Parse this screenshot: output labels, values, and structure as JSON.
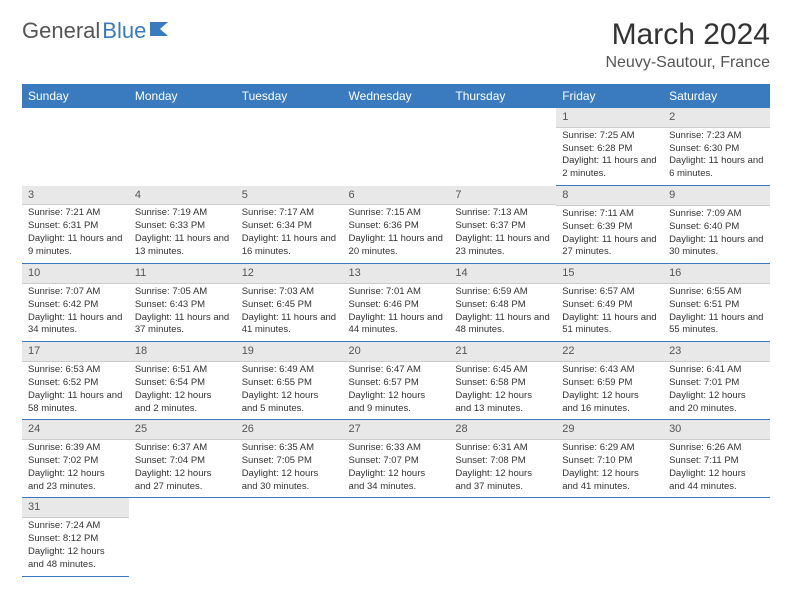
{
  "logo": {
    "general": "General",
    "blue": "Blue"
  },
  "title": "March 2024",
  "location": "Neuvy-Sautour, France",
  "day_headers": [
    "Sunday",
    "Monday",
    "Tuesday",
    "Wednesday",
    "Thursday",
    "Friday",
    "Saturday"
  ],
  "colors": {
    "header_bg": "#3a7bbf",
    "daynum_bg": "#e8e8e8",
    "row_border": "#3a7bbf"
  },
  "weeks": [
    [
      {
        "blank": true
      },
      {
        "blank": true
      },
      {
        "blank": true
      },
      {
        "blank": true
      },
      {
        "blank": true
      },
      {
        "n": "1",
        "sr": "Sunrise: 7:25 AM",
        "ss": "Sunset: 6:28 PM",
        "dl": "Daylight: 11 hours and 2 minutes."
      },
      {
        "n": "2",
        "sr": "Sunrise: 7:23 AM",
        "ss": "Sunset: 6:30 PM",
        "dl": "Daylight: 11 hours and 6 minutes."
      }
    ],
    [
      {
        "n": "3",
        "sr": "Sunrise: 7:21 AM",
        "ss": "Sunset: 6:31 PM",
        "dl": "Daylight: 11 hours and 9 minutes."
      },
      {
        "n": "4",
        "sr": "Sunrise: 7:19 AM",
        "ss": "Sunset: 6:33 PM",
        "dl": "Daylight: 11 hours and 13 minutes."
      },
      {
        "n": "5",
        "sr": "Sunrise: 7:17 AM",
        "ss": "Sunset: 6:34 PM",
        "dl": "Daylight: 11 hours and 16 minutes."
      },
      {
        "n": "6",
        "sr": "Sunrise: 7:15 AM",
        "ss": "Sunset: 6:36 PM",
        "dl": "Daylight: 11 hours and 20 minutes."
      },
      {
        "n": "7",
        "sr": "Sunrise: 7:13 AM",
        "ss": "Sunset: 6:37 PM",
        "dl": "Daylight: 11 hours and 23 minutes."
      },
      {
        "n": "8",
        "sr": "Sunrise: 7:11 AM",
        "ss": "Sunset: 6:39 PM",
        "dl": "Daylight: 11 hours and 27 minutes."
      },
      {
        "n": "9",
        "sr": "Sunrise: 7:09 AM",
        "ss": "Sunset: 6:40 PM",
        "dl": "Daylight: 11 hours and 30 minutes."
      }
    ],
    [
      {
        "n": "10",
        "sr": "Sunrise: 7:07 AM",
        "ss": "Sunset: 6:42 PM",
        "dl": "Daylight: 11 hours and 34 minutes."
      },
      {
        "n": "11",
        "sr": "Sunrise: 7:05 AM",
        "ss": "Sunset: 6:43 PM",
        "dl": "Daylight: 11 hours and 37 minutes."
      },
      {
        "n": "12",
        "sr": "Sunrise: 7:03 AM",
        "ss": "Sunset: 6:45 PM",
        "dl": "Daylight: 11 hours and 41 minutes."
      },
      {
        "n": "13",
        "sr": "Sunrise: 7:01 AM",
        "ss": "Sunset: 6:46 PM",
        "dl": "Daylight: 11 hours and 44 minutes."
      },
      {
        "n": "14",
        "sr": "Sunrise: 6:59 AM",
        "ss": "Sunset: 6:48 PM",
        "dl": "Daylight: 11 hours and 48 minutes."
      },
      {
        "n": "15",
        "sr": "Sunrise: 6:57 AM",
        "ss": "Sunset: 6:49 PM",
        "dl": "Daylight: 11 hours and 51 minutes."
      },
      {
        "n": "16",
        "sr": "Sunrise: 6:55 AM",
        "ss": "Sunset: 6:51 PM",
        "dl": "Daylight: 11 hours and 55 minutes."
      }
    ],
    [
      {
        "n": "17",
        "sr": "Sunrise: 6:53 AM",
        "ss": "Sunset: 6:52 PM",
        "dl": "Daylight: 11 hours and 58 minutes."
      },
      {
        "n": "18",
        "sr": "Sunrise: 6:51 AM",
        "ss": "Sunset: 6:54 PM",
        "dl": "Daylight: 12 hours and 2 minutes."
      },
      {
        "n": "19",
        "sr": "Sunrise: 6:49 AM",
        "ss": "Sunset: 6:55 PM",
        "dl": "Daylight: 12 hours and 5 minutes."
      },
      {
        "n": "20",
        "sr": "Sunrise: 6:47 AM",
        "ss": "Sunset: 6:57 PM",
        "dl": "Daylight: 12 hours and 9 minutes."
      },
      {
        "n": "21",
        "sr": "Sunrise: 6:45 AM",
        "ss": "Sunset: 6:58 PM",
        "dl": "Daylight: 12 hours and 13 minutes."
      },
      {
        "n": "22",
        "sr": "Sunrise: 6:43 AM",
        "ss": "Sunset: 6:59 PM",
        "dl": "Daylight: 12 hours and 16 minutes."
      },
      {
        "n": "23",
        "sr": "Sunrise: 6:41 AM",
        "ss": "Sunset: 7:01 PM",
        "dl": "Daylight: 12 hours and 20 minutes."
      }
    ],
    [
      {
        "n": "24",
        "sr": "Sunrise: 6:39 AM",
        "ss": "Sunset: 7:02 PM",
        "dl": "Daylight: 12 hours and 23 minutes."
      },
      {
        "n": "25",
        "sr": "Sunrise: 6:37 AM",
        "ss": "Sunset: 7:04 PM",
        "dl": "Daylight: 12 hours and 27 minutes."
      },
      {
        "n": "26",
        "sr": "Sunrise: 6:35 AM",
        "ss": "Sunset: 7:05 PM",
        "dl": "Daylight: 12 hours and 30 minutes."
      },
      {
        "n": "27",
        "sr": "Sunrise: 6:33 AM",
        "ss": "Sunset: 7:07 PM",
        "dl": "Daylight: 12 hours and 34 minutes."
      },
      {
        "n": "28",
        "sr": "Sunrise: 6:31 AM",
        "ss": "Sunset: 7:08 PM",
        "dl": "Daylight: 12 hours and 37 minutes."
      },
      {
        "n": "29",
        "sr": "Sunrise: 6:29 AM",
        "ss": "Sunset: 7:10 PM",
        "dl": "Daylight: 12 hours and 41 minutes."
      },
      {
        "n": "30",
        "sr": "Sunrise: 6:26 AM",
        "ss": "Sunset: 7:11 PM",
        "dl": "Daylight: 12 hours and 44 minutes."
      }
    ],
    [
      {
        "n": "31",
        "sr": "Sunrise: 7:24 AM",
        "ss": "Sunset: 8:12 PM",
        "dl": "Daylight: 12 hours and 48 minutes."
      },
      {
        "blank": true
      },
      {
        "blank": true
      },
      {
        "blank": true
      },
      {
        "blank": true
      },
      {
        "blank": true
      },
      {
        "blank": true
      }
    ]
  ]
}
